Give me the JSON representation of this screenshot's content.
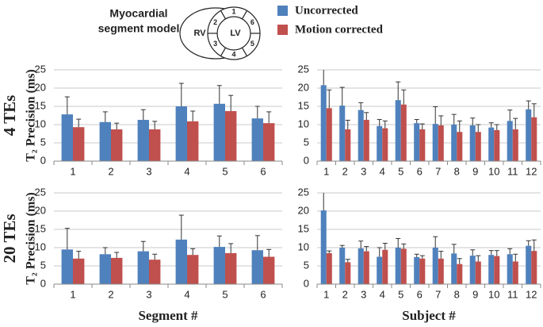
{
  "legend": {
    "series": [
      {
        "name": "Uncorrected",
        "color": "#4f81bd"
      },
      {
        "name": "Motion corrected",
        "color": "#c0504d"
      }
    ]
  },
  "diagram": {
    "title": [
      "Myocardial",
      "segment model"
    ],
    "labels": [
      "RV",
      "LV",
      "1",
      "2",
      "3",
      "4",
      "5",
      "6"
    ]
  },
  "chart_data": [
    {
      "type": "bar",
      "row_label": "4 TEs",
      "ylabel": "T₂ Precision (ms)",
      "categories": [
        "1",
        "2",
        "3",
        "4",
        "5",
        "6"
      ],
      "series": [
        {
          "color": "#4f81bd",
          "values": [
            12.8,
            10.7,
            11.3,
            15,
            15.7,
            11.7
          ],
          "errors": [
            4.8,
            2.8,
            2.8,
            6.3,
            5,
            3.3
          ]
        },
        {
          "color": "#c0504d",
          "values": [
            9.3,
            8.7,
            8.7,
            10.9,
            13.7,
            10.4
          ],
          "errors": [
            2.2,
            1.7,
            2.2,
            2.8,
            4.3,
            3.1
          ]
        }
      ],
      "ylim": [
        0,
        25
      ],
      "yticks": [
        0,
        5,
        10,
        15,
        20,
        25
      ],
      "grid": true
    },
    {
      "type": "bar",
      "categories": [
        "1",
        "2",
        "3",
        "4",
        "5",
        "6",
        "7",
        "8",
        "9",
        "10",
        "11",
        "12"
      ],
      "series": [
        {
          "color": "#4f81bd",
          "values": [
            20.8,
            15.2,
            14,
            9.6,
            16.7,
            10.4,
            10.2,
            10,
            9.8,
            9.2,
            11,
            14.2
          ],
          "errors": [
            4.5,
            5,
            2,
            1.8,
            5,
            1,
            4.7,
            2.8,
            2,
            1.3,
            3,
            2.3
          ]
        },
        {
          "color": "#c0504d",
          "values": [
            14.5,
            8.7,
            11.3,
            9,
            15.5,
            8.7,
            9.8,
            8,
            8,
            8.5,
            8.7,
            12
          ],
          "errors": [
            5,
            2.5,
            2,
            2,
            4,
            1.5,
            2.6,
            3,
            2,
            1.5,
            3,
            3.7
          ]
        }
      ],
      "ylim": [
        0,
        25
      ],
      "yticks": [
        0,
        5,
        10,
        15,
        20,
        25
      ],
      "grid": true
    },
    {
      "type": "bar",
      "row_label": "20 TEs",
      "ylabel": "T₂ Precision (ms)",
      "xlabel": "Segment #",
      "categories": [
        "1",
        "2",
        "3",
        "4",
        "5",
        "6"
      ],
      "series": [
        {
          "color": "#4f81bd",
          "values": [
            9.5,
            8.2,
            9,
            12.2,
            10.2,
            9.3
          ],
          "errors": [
            5.8,
            1.8,
            2.7,
            6.7,
            3,
            4
          ]
        },
        {
          "color": "#c0504d",
          "values": [
            7,
            7.2,
            6.7,
            8,
            8.5,
            7.5
          ],
          "errors": [
            2,
            1.5,
            1.5,
            1.7,
            2.6,
            2
          ]
        }
      ],
      "ylim": [
        0,
        25
      ],
      "yticks": [
        0,
        5,
        10,
        15,
        20,
        25
      ],
      "grid": true
    },
    {
      "type": "bar",
      "xlabel": "Subject #",
      "categories": [
        "1",
        "2",
        "3",
        "4",
        "5",
        "6",
        "7",
        "8",
        "9",
        "10",
        "11",
        "12"
      ],
      "series": [
        {
          "color": "#4f81bd",
          "values": [
            20.2,
            10,
            9.8,
            7.5,
            10,
            7.4,
            10,
            8.4,
            7.8,
            8,
            8.2,
            10.5
          ],
          "errors": [
            5,
            0.6,
            2,
            2.5,
            2.5,
            0.8,
            3,
            2.5,
            1.6,
            1.2,
            1.5,
            1.4
          ]
        },
        {
          "color": "#c0504d",
          "values": [
            8.5,
            6,
            9,
            9.4,
            9.7,
            7,
            7,
            5.5,
            6.2,
            7.7,
            6.2,
            9.1
          ],
          "errors": [
            0.6,
            0.8,
            1.3,
            1.8,
            1.3,
            0.8,
            2,
            1.5,
            1.6,
            1.5,
            2,
            3
          ]
        }
      ],
      "ylim": [
        0,
        25
      ],
      "yticks": [
        0,
        5,
        10,
        15,
        20,
        25
      ],
      "grid": true
    }
  ]
}
